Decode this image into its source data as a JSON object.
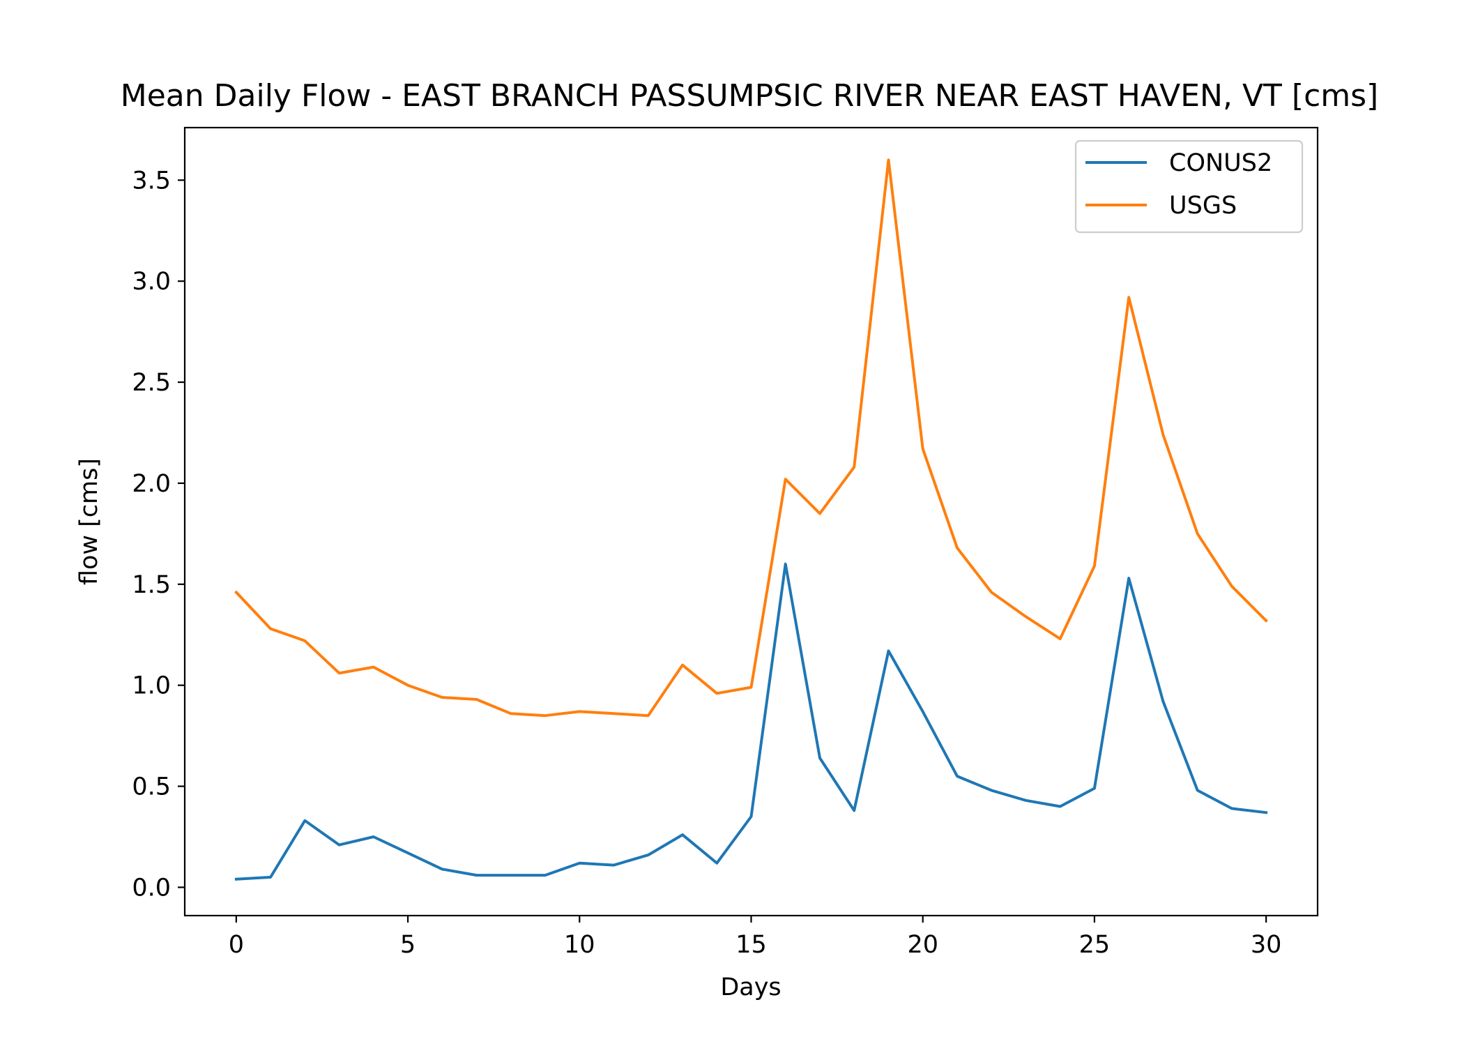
{
  "chart_data": {
    "type": "line",
    "title": "Mean Daily Flow - EAST BRANCH PASSUMPSIC RIVER NEAR EAST HAVEN, VT [cms]",
    "xlabel": "Days",
    "ylabel": "flow [cms]",
    "xlim": [
      -1.5,
      31.5
    ],
    "ylim": [
      -0.14,
      3.76
    ],
    "xticks": [
      0,
      5,
      10,
      15,
      20,
      25,
      30
    ],
    "yticks": [
      0.0,
      0.5,
      1.0,
      1.5,
      2.0,
      2.5,
      3.0,
      3.5
    ],
    "grid": false,
    "legend_position": "upper right",
    "x": [
      0,
      1,
      2,
      3,
      4,
      5,
      6,
      7,
      8,
      9,
      10,
      11,
      12,
      13,
      14,
      15,
      16,
      17,
      18,
      19,
      20,
      21,
      22,
      23,
      24,
      25,
      26,
      27,
      28,
      29,
      30
    ],
    "series": [
      {
        "name": "CONUS2",
        "color": "#1f77b4",
        "values": [
          0.04,
          0.05,
          0.33,
          0.21,
          0.25,
          0.17,
          0.09,
          0.06,
          0.06,
          0.06,
          0.12,
          0.11,
          0.16,
          0.26,
          0.12,
          0.35,
          1.6,
          0.64,
          0.38,
          1.17,
          0.87,
          0.55,
          0.48,
          0.43,
          0.4,
          0.49,
          1.53,
          0.92,
          0.48,
          0.39,
          0.37
        ]
      },
      {
        "name": "USGS",
        "color": "#ff7f0e",
        "values": [
          1.46,
          1.28,
          1.22,
          1.06,
          1.09,
          1.0,
          0.94,
          0.93,
          0.86,
          0.85,
          0.87,
          0.86,
          0.85,
          1.1,
          0.96,
          0.99,
          2.02,
          1.85,
          2.08,
          3.6,
          2.17,
          1.68,
          1.46,
          1.34,
          1.23,
          1.59,
          2.92,
          2.24,
          1.75,
          1.49,
          1.32
        ]
      }
    ]
  }
}
